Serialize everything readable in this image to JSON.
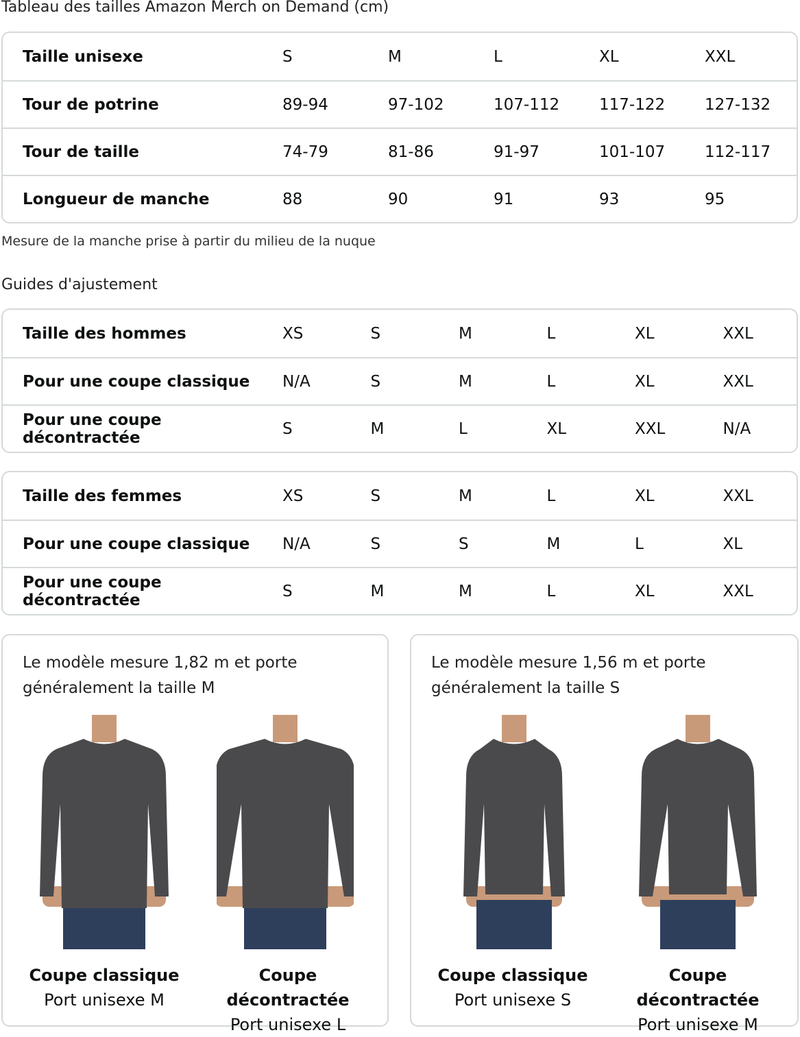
{
  "title": "Tableau des tailles Amazon Merch on Demand (cm)",
  "unisex_table": {
    "rows": [
      {
        "label": "Taille unisexe",
        "values": [
          "S",
          "M",
          "L",
          "XL",
          "XXL"
        ]
      },
      {
        "label": "Tour de potrine",
        "values": [
          "89-94",
          "97-102",
          "107-112",
          "117-122",
          "127-132"
        ]
      },
      {
        "label": "Tour de taille",
        "values": [
          "74-79",
          "81-86",
          "91-97",
          "101-107",
          "112-117"
        ]
      },
      {
        "label": "Longueur de manche",
        "values": [
          "88",
          "90",
          "91",
          "93",
          "95"
        ]
      }
    ]
  },
  "note": "Mesure de la manche prise à partir du milieu de la nuque",
  "fit_heading": "Guides d'ajustement",
  "men_table": {
    "rows": [
      {
        "label": "Taille des hommes",
        "values": [
          "XS",
          "S",
          "M",
          "L",
          "XL",
          "XXL"
        ]
      },
      {
        "label": "Pour une coupe classique",
        "values": [
          "N/A",
          "S",
          "M",
          "L",
          "XL",
          "XXL"
        ]
      },
      {
        "label": "Pour une coupe décontractée",
        "values": [
          "S",
          "M",
          "L",
          "XL",
          "XXL",
          "N/A"
        ]
      }
    ]
  },
  "women_table": {
    "rows": [
      {
        "label": "Taille des femmes",
        "values": [
          "XS",
          "S",
          "M",
          "L",
          "XL",
          "XXL"
        ]
      },
      {
        "label": "Pour une coupe classique",
        "values": [
          "N/A",
          "S",
          "S",
          "M",
          "L",
          "XL"
        ]
      },
      {
        "label": "Pour une coupe décontractée",
        "values": [
          "S",
          "M",
          "M",
          "L",
          "XL",
          "XXL"
        ]
      }
    ]
  },
  "models": [
    {
      "caption": "Le modèle mesure 1,82 m et porte généralement la taille M",
      "figures": [
        {
          "fit": "Coupe classique",
          "size": "Port unisexe M"
        },
        {
          "fit": "Coupe décontractée",
          "size": "Port unisexe L"
        }
      ]
    },
    {
      "caption": "Le modèle mesure 1,56 m et porte généralement la taille S",
      "figures": [
        {
          "fit": "Coupe classique",
          "size": "Port unisexe S"
        },
        {
          "fit": "Coupe décontractée",
          "size": "Port unisexe M"
        }
      ]
    }
  ],
  "colors": {
    "border": "#d5d9d9",
    "shirt": "#4a4a4d",
    "jeans": "#2e3f5c",
    "skin": "#c99a7a"
  }
}
